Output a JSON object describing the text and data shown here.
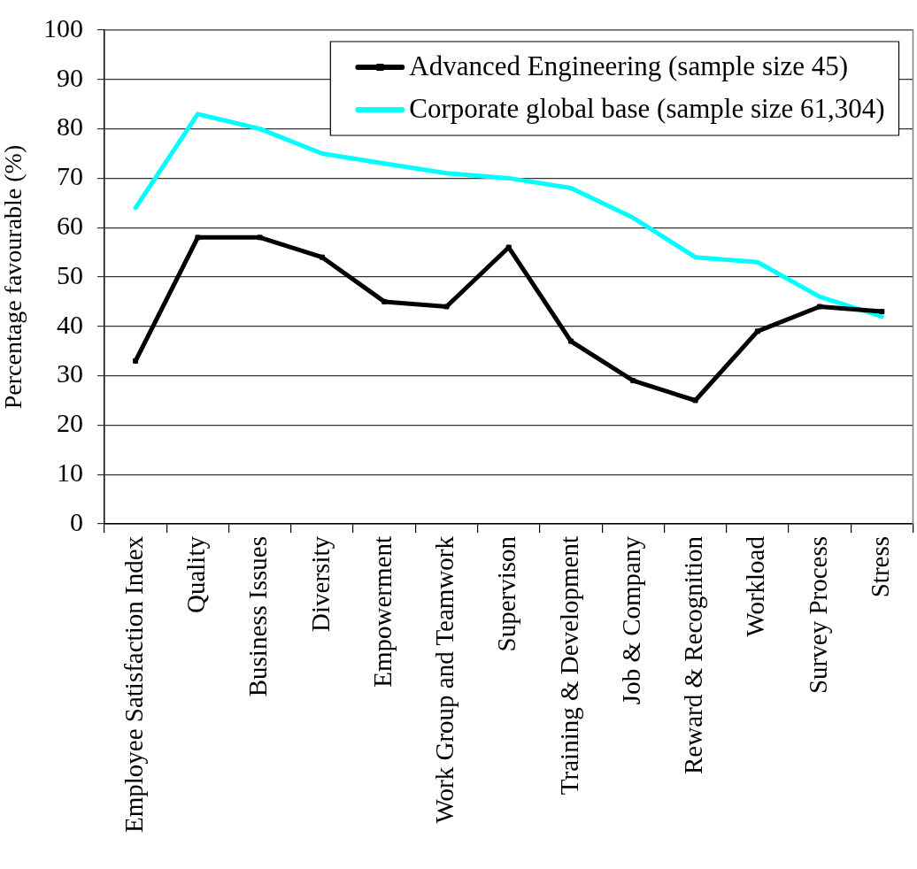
{
  "chart_data": {
    "type": "line",
    "ylabel": "Percentage favourable (%)",
    "categories": [
      "Employee Satisfaction Index",
      "Quality",
      "Business Issues",
      "Diversity",
      "Empowerment",
      "Work Group and Teamwork",
      "Supervison",
      "Training & Development",
      "Job & Company",
      "Reward & Recognition",
      "Workload",
      "Survey Process",
      "Stress"
    ],
    "series": [
      {
        "name": "Advanced Engineering (sample size 45)",
        "color": "#000000",
        "marker": "square",
        "values": [
          33,
          58,
          58,
          54,
          45,
          44,
          56,
          37,
          29,
          25,
          39,
          44,
          43
        ]
      },
      {
        "name": "Corporate global base (sample size 61,304)",
        "color": "#00ffff",
        "values": [
          64,
          83,
          80,
          75,
          73,
          71,
          70,
          68,
          62,
          54,
          53,
          46,
          42
        ]
      }
    ],
    "ylim": [
      0,
      100
    ],
    "yticks": [
      0,
      10,
      20,
      30,
      40,
      50,
      60,
      70,
      80,
      90,
      100
    ],
    "grid": "y",
    "legend": "top right"
  }
}
